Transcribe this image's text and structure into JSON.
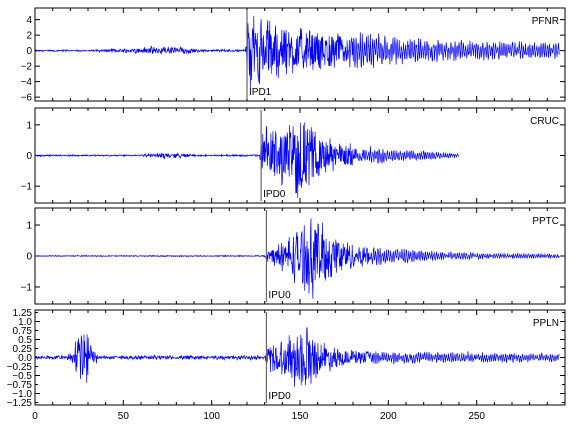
{
  "chart_data": {
    "type": "line",
    "title": "",
    "xlabel": "",
    "xlim": [
      0,
      300
    ],
    "x_ticks": [
      0,
      50,
      100,
      150,
      200,
      250
    ],
    "line_color": "#0000ff",
    "pick_line_color": "#666666",
    "grid": false,
    "panels": [
      {
        "station": "PFNR",
        "pick": {
          "label": "IPD1",
          "time": 120
        },
        "ylim": [
          -6.5,
          5.5
        ],
        "y_ticks": [
          4,
          2,
          0,
          -2,
          -4,
          -6
        ],
        "y_tick_labels": [
          "4",
          "2",
          "0",
          "−2",
          "−4",
          "−6"
        ],
        "trace_end": 297,
        "noise": 0.06,
        "envelope": [
          [
            0,
            0.1
          ],
          [
            30,
            0.1
          ],
          [
            55,
            0.35
          ],
          [
            62,
            0.5
          ],
          [
            75,
            0.7
          ],
          [
            85,
            0.5
          ],
          [
            95,
            0.15
          ],
          [
            119,
            0.15
          ],
          [
            121,
            5.4
          ],
          [
            125,
            5.0
          ],
          [
            140,
            4.0
          ],
          [
            160,
            2.8
          ],
          [
            180,
            2.2
          ],
          [
            200,
            1.7
          ],
          [
            220,
            1.35
          ],
          [
            240,
            1.1
          ],
          [
            260,
            1.0
          ],
          [
            297,
            0.9
          ]
        ]
      },
      {
        "station": "CRUC",
        "pick": {
          "label": "IPD0",
          "time": 128
        },
        "ylim": [
          -1.55,
          1.55
        ],
        "y_ticks": [
          1,
          0,
          -1
        ],
        "y_tick_labels": [
          "1",
          "0",
          "−1"
        ],
        "trace_end": 240,
        "noise": 0.015,
        "envelope": [
          [
            0,
            0.02
          ],
          [
            60,
            0.02
          ],
          [
            64,
            0.07
          ],
          [
            75,
            0.1
          ],
          [
            85,
            0.07
          ],
          [
            90,
            0.02
          ],
          [
            127,
            0.03
          ],
          [
            129,
            1.0
          ],
          [
            140,
            1.1
          ],
          [
            150,
            1.5
          ],
          [
            160,
            0.8
          ],
          [
            175,
            0.45
          ],
          [
            190,
            0.25
          ],
          [
            210,
            0.15
          ],
          [
            240,
            0.07
          ]
        ]
      },
      {
        "station": "PPTC",
        "pick": {
          "label": "IPU0",
          "time": 131
        },
        "ylim": [
          -1.55,
          1.55
        ],
        "y_ticks": [
          1,
          0,
          -1
        ],
        "y_tick_labels": [
          "1",
          "0",
          "−1"
        ],
        "trace_end": 297,
        "noise": 0.01,
        "envelope": [
          [
            0,
            0.015
          ],
          [
            130,
            0.015
          ],
          [
            132,
            0.25
          ],
          [
            140,
            0.55
          ],
          [
            150,
            1.1
          ],
          [
            158,
            1.45
          ],
          [
            165,
            1.0
          ],
          [
            180,
            0.45
          ],
          [
            200,
            0.22
          ],
          [
            230,
            0.12
          ],
          [
            260,
            0.08
          ],
          [
            297,
            0.06
          ]
        ]
      },
      {
        "station": "PPLN",
        "pick": {
          "label": "IPD0",
          "time": 131
        },
        "ylim": [
          -1.32,
          1.32
        ],
        "y_ticks": [
          1,
          0.5,
          0,
          -0.5,
          -1
        ],
        "y_tick_labels": [
          "1.0",
          "0.5",
          "0.0",
          "−0.5",
          "−1.0"
        ],
        "extra_tick_labels": [
          {
            "value": 1.25,
            "label": "1.25"
          },
          {
            "value": 0.75,
            "label": "0.75"
          },
          {
            "value": 0.25,
            "label": "0.25"
          },
          {
            "value": -0.25,
            "label": "−0.25"
          },
          {
            "value": -0.75,
            "label": "−0.75"
          },
          {
            "value": -1.25,
            "label": "−1.25"
          }
        ],
        "trace_end": 297,
        "noise": 0.025,
        "envelope": [
          [
            0,
            0.04
          ],
          [
            18,
            0.05
          ],
          [
            22,
            0.35
          ],
          [
            27,
            1.25
          ],
          [
            30,
            0.8
          ],
          [
            33,
            0.25
          ],
          [
            37,
            0.05
          ],
          [
            130,
            0.05
          ],
          [
            132,
            0.45
          ],
          [
            140,
            0.55
          ],
          [
            150,
            0.95
          ],
          [
            153,
            1.15
          ],
          [
            160,
            0.55
          ],
          [
            175,
            0.25
          ],
          [
            200,
            0.15
          ],
          [
            250,
            0.12
          ],
          [
            297,
            0.1
          ]
        ]
      }
    ]
  }
}
